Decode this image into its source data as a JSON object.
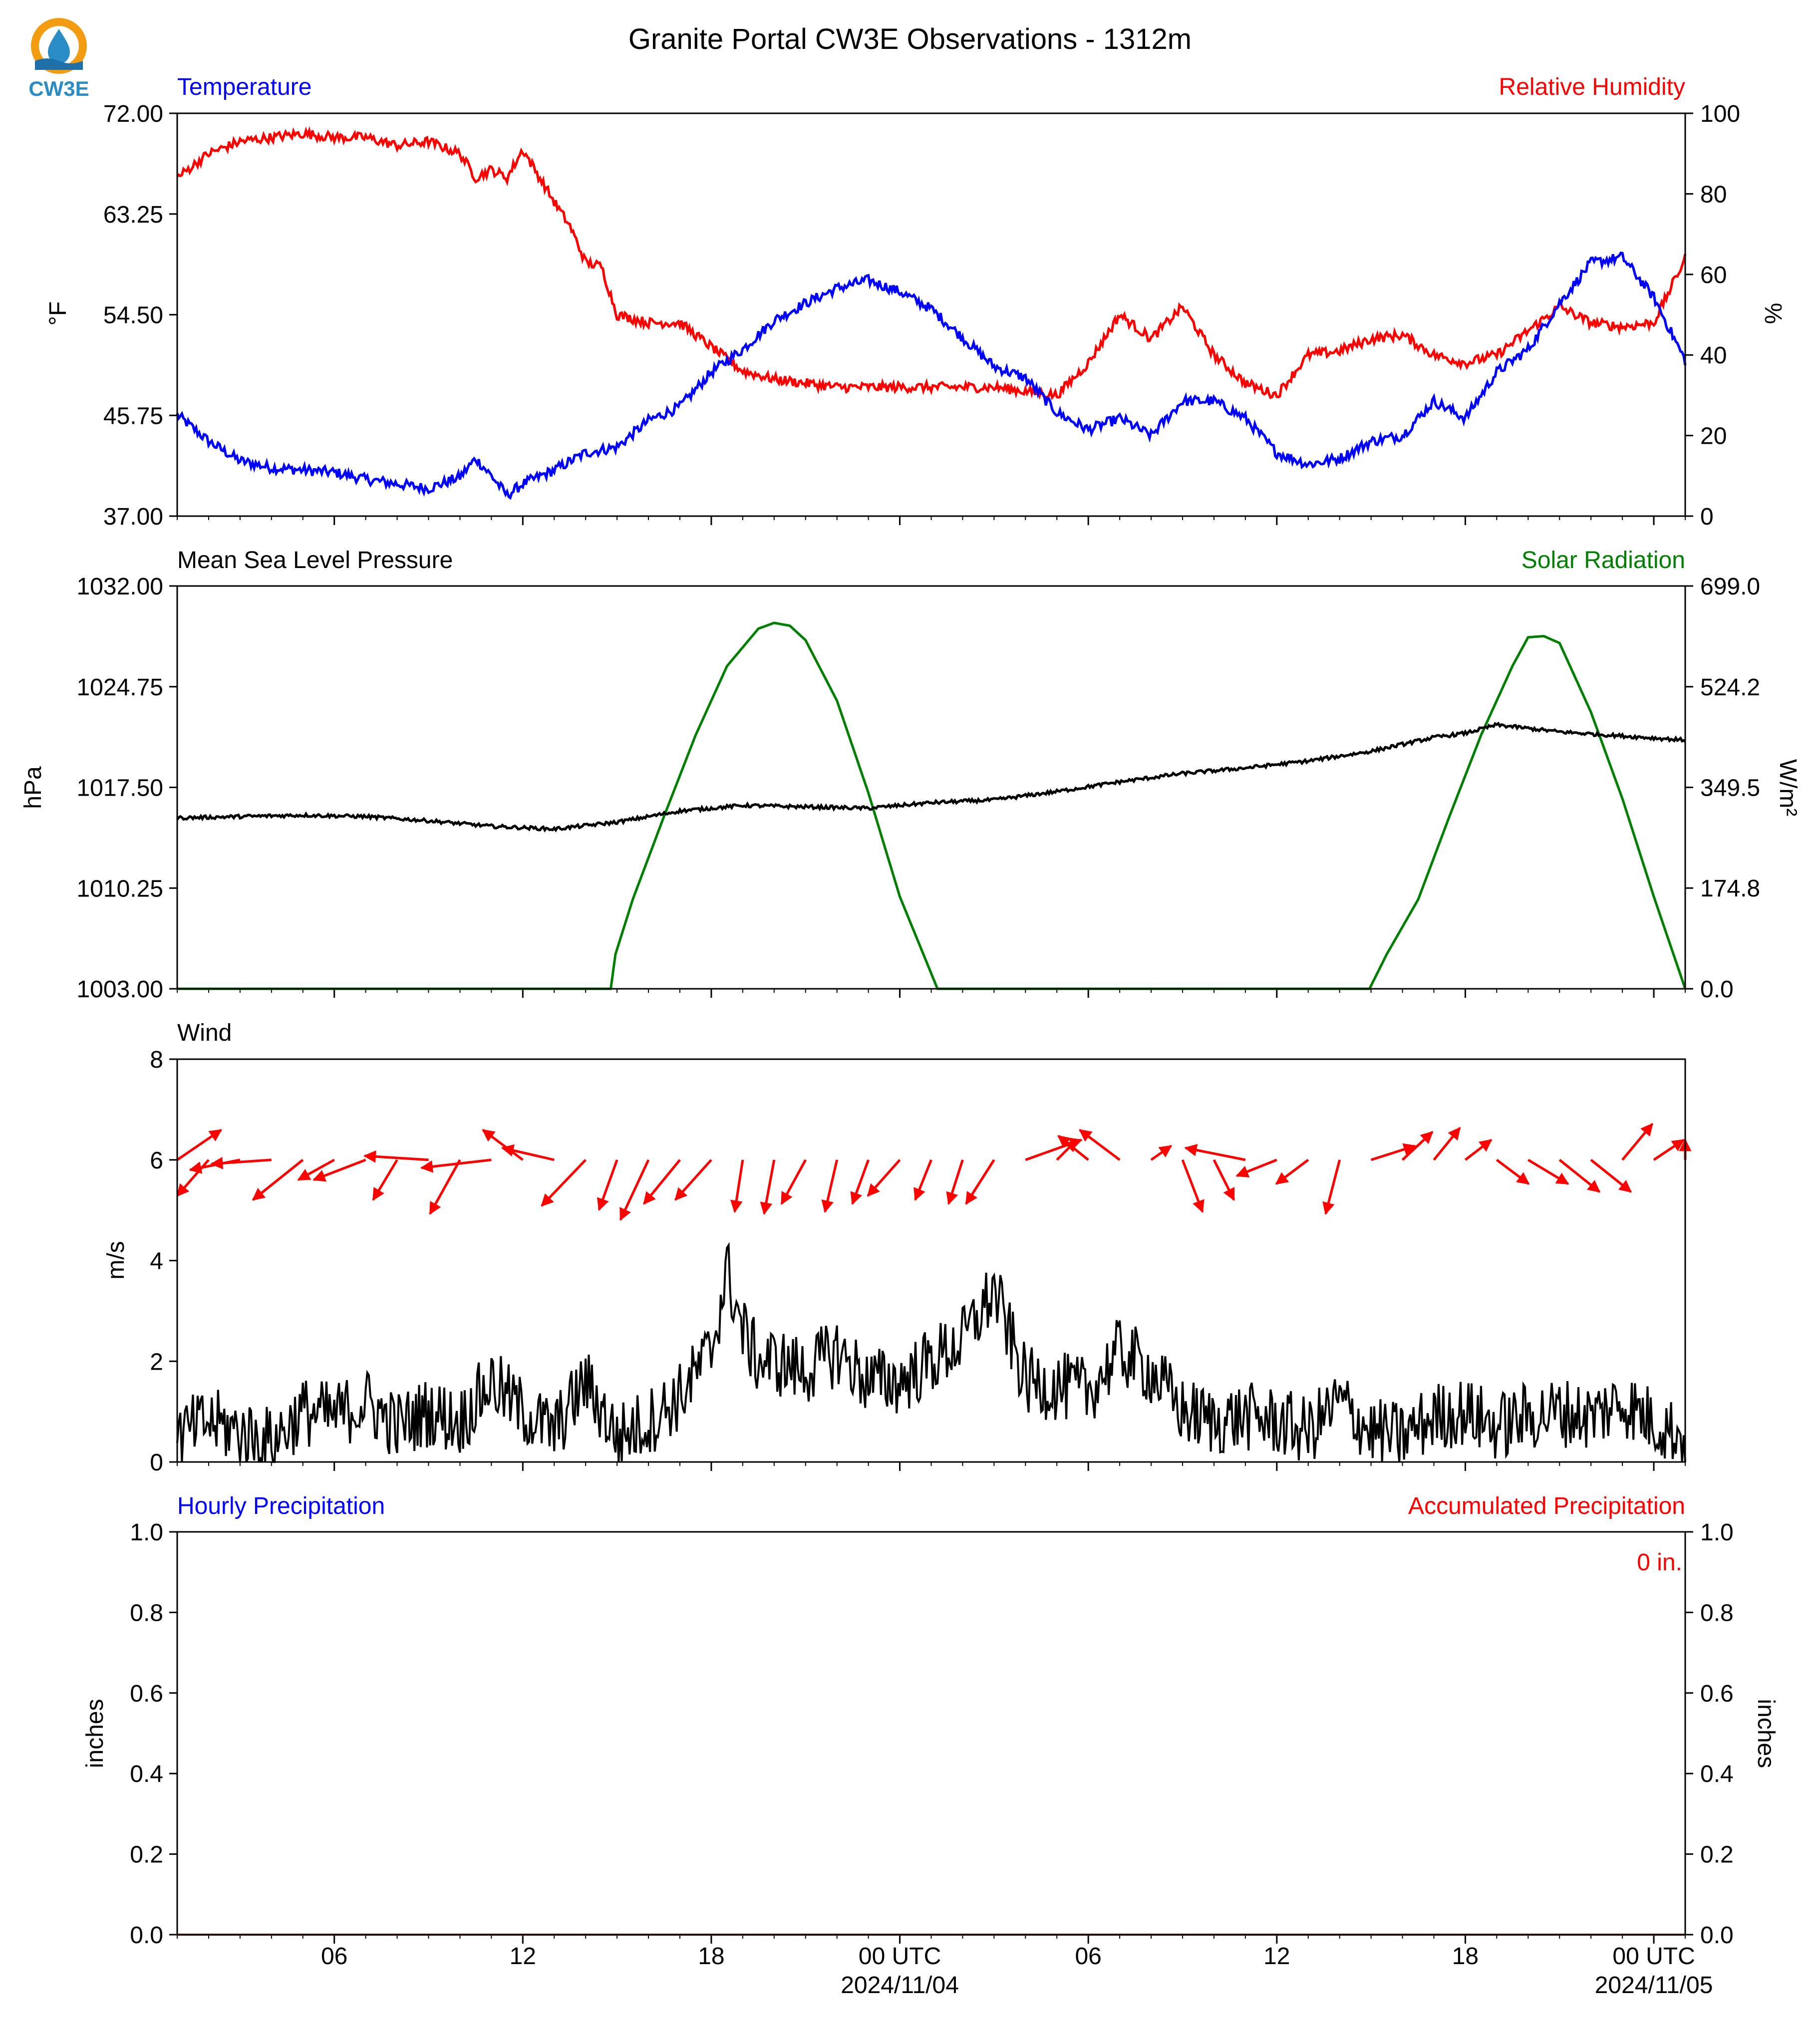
{
  "figure_title": "Granite Portal CW3E Observations - 1312m",
  "logo": {
    "text": "CW3E",
    "icon": "cw3e-water-drop-logo-icon",
    "ring_color": "#f39c12",
    "drop_color": "#2a8cc4",
    "wave_color": "#1f6fa8"
  },
  "colors": {
    "temperature": "#0000ff",
    "humidity": "#ff0000",
    "pressure": "#000000",
    "solar": "#008000",
    "wind_arrow": "#ff0000",
    "wind_speed": "#000000",
    "precip_hourly": "#0000ff",
    "precip_accum": "#ff0000"
  },
  "time_axis": {
    "start": "2024-11-03 01:00 UTC",
    "end": "2024-11-05 01:00 UTC",
    "major_ticks": [
      {
        "time": "2024-11-03 06:00",
        "label": "06",
        "date": ""
      },
      {
        "time": "2024-11-03 12:00",
        "label": "12",
        "date": ""
      },
      {
        "time": "2024-11-03 18:00",
        "label": "18",
        "date": ""
      },
      {
        "time": "2024-11-04 00:00",
        "label": "00 UTC",
        "date": "2024/11/04"
      },
      {
        "time": "2024-11-04 06:00",
        "label": "06",
        "date": ""
      },
      {
        "time": "2024-11-04 12:00",
        "label": "12",
        "date": ""
      },
      {
        "time": "2024-11-04 18:00",
        "label": "18",
        "date": ""
      },
      {
        "time": "2024-11-05 00:00",
        "label": "00 UTC",
        "date": "2024/11/05"
      }
    ]
  },
  "panels": {
    "temp_rh": {
      "left_title": "Temperature",
      "right_title": "Relative Humidity",
      "left_ylabel": "°F",
      "right_ylabel": "%",
      "left_ylim": [
        37.0,
        72.0
      ],
      "right_ylim": [
        0,
        100
      ],
      "left_ticks": [
        "37.00",
        "45.75",
        "54.50",
        "63.25",
        "72.00"
      ],
      "right_ticks": [
        "0",
        "20",
        "40",
        "60",
        "80",
        "100"
      ]
    },
    "pressure_solar": {
      "left_title": "Mean Sea Level Pressure",
      "right_title": "Solar Radiation",
      "left_ylabel": "hPa",
      "right_ylabel": "W/m²",
      "left_ylim": [
        1003.0,
        1032.0
      ],
      "right_ylim": [
        0.0,
        699.0
      ],
      "left_ticks": [
        "1003.00",
        "1010.25",
        "1017.50",
        "1024.75",
        "1032.00"
      ],
      "right_ticks": [
        "0.0",
        "174.8",
        "349.5",
        "524.2",
        "699.0"
      ]
    },
    "wind": {
      "left_title": "Wind",
      "left_ylabel": "m/s",
      "left_ylim": [
        0,
        8
      ],
      "left_ticks": [
        "0",
        "2",
        "4",
        "6",
        "8"
      ]
    },
    "precip": {
      "left_title": "Hourly Precipitation",
      "right_title": "Accumulated Precipitation",
      "left_ylabel": "inches",
      "right_ylabel": "inches",
      "left_ylim": [
        0.0,
        1.0
      ],
      "right_ylim": [
        0.0,
        1.0
      ],
      "left_ticks": [
        "0.0",
        "0.2",
        "0.4",
        "0.6",
        "0.8",
        "1.0"
      ],
      "right_ticks": [
        "0.0",
        "0.2",
        "0.4",
        "0.6",
        "0.8",
        "1.0"
      ],
      "accum_label": "0 in."
    }
  },
  "chart_data": [
    {
      "type": "line",
      "panel": "temp_rh",
      "x_unit": "hours since 2024-11-03 01:00 UTC",
      "series": [
        {
          "name": "Temperature",
          "axis": "left",
          "unit": "°F",
          "x": [
            0,
            1,
            2,
            3,
            4,
            5,
            6,
            7,
            8,
            9,
            9.5,
            10,
            10.5,
            11,
            12,
            13,
            14,
            15,
            16,
            17,
            18,
            19,
            20,
            21,
            22,
            23,
            24,
            25,
            26,
            27,
            28,
            29,
            30,
            31,
            32,
            33,
            34,
            35,
            36,
            37,
            38,
            39,
            40,
            41,
            42,
            43,
            44,
            45,
            46,
            47,
            48
          ],
          "y": [
            45.8,
            43.5,
            41.8,
            41.2,
            41.0,
            40.8,
            40.2,
            39.8,
            39.4,
            40.4,
            42.0,
            40.5,
            38.8,
            39.8,
            41.0,
            42.5,
            43.0,
            45.3,
            46.5,
            49.5,
            51.5,
            54.0,
            55.5,
            56.8,
            57.5,
            56.5,
            55.0,
            52.5,
            50.0,
            49.0,
            46.0,
            44.5,
            45.5,
            44.0,
            47.0,
            47.0,
            45.5,
            42.5,
            41.5,
            42.0,
            43.5,
            44.0,
            47.0,
            45.5,
            49.5,
            51.5,
            55.5,
            59.0,
            59.5,
            56.0,
            50.5
          ]
        },
        {
          "name": "Relative Humidity",
          "axis": "right",
          "unit": "%",
          "x": [
            0,
            1,
            2,
            3,
            4,
            5,
            6,
            7,
            8,
            9,
            9.5,
            10,
            10.5,
            11,
            12,
            12.5,
            13,
            13.5,
            14,
            15,
            16,
            17,
            18,
            19,
            20,
            21,
            22,
            23,
            24,
            25,
            26,
            27,
            28,
            29,
            30,
            31,
            32,
            33,
            34,
            35,
            36,
            37,
            38,
            39,
            40,
            41,
            42,
            43,
            44,
            45,
            46,
            47,
            48
          ],
          "y": [
            84,
            90,
            93,
            94,
            95,
            94,
            94,
            92,
            93,
            90,
            84,
            86,
            84,
            91,
            78,
            72,
            63,
            62,
            50,
            48,
            48,
            42,
            36,
            34,
            33,
            32,
            32,
            32,
            32,
            32,
            32,
            31,
            30,
            38,
            50,
            44,
            52,
            40,
            33,
            30,
            40,
            41,
            44,
            45,
            40,
            38,
            40,
            46,
            52,
            48,
            47,
            48,
            64
          ]
        }
      ]
    },
    {
      "type": "line",
      "panel": "pressure_solar",
      "x_unit": "hours since 2024-11-03 01:00 UTC",
      "series": [
        {
          "name": "Mean Sea Level Pressure",
          "axis": "left",
          "unit": "hPa",
          "x": [
            0,
            2,
            4,
            6,
            8,
            10,
            12,
            14,
            16,
            18,
            20,
            22,
            24,
            26,
            28,
            30,
            32,
            34,
            36,
            38,
            40,
            41,
            42,
            44,
            46,
            48
          ],
          "y": [
            1015.3,
            1015.4,
            1015.5,
            1015.4,
            1015.1,
            1014.7,
            1014.5,
            1015.0,
            1015.8,
            1016.2,
            1016.1,
            1016.0,
            1016.4,
            1016.6,
            1017.2,
            1017.9,
            1018.5,
            1018.9,
            1019.4,
            1020.1,
            1021.1,
            1021.4,
            1022.0,
            1021.5,
            1021.2,
            1020.9
          ]
        },
        {
          "name": "Solar Radiation",
          "axis": "right",
          "unit": "W/m²",
          "x": [
            0,
            13.8,
            13.95,
            14.5,
            15.5,
            16.5,
            17.5,
            18.5,
            19.0,
            19.5,
            20.0,
            21.0,
            22.0,
            23.0,
            24.2,
            24.5,
            37.8,
            37.95,
            38.5,
            39.5,
            40.5,
            41.5,
            42.5,
            43.0,
            43.5,
            44.0,
            45.0,
            46.0,
            47.0,
            48.0
          ],
          "y": [
            0,
            0,
            60,
            155,
            300,
            440,
            560,
            625,
            635,
            630,
            605,
            500,
            340,
            160,
            0,
            0,
            0,
            0,
            60,
            155,
            300,
            440,
            560,
            610,
            612,
            600,
            480,
            330,
            160,
            0
          ]
        }
      ]
    },
    {
      "type": "line",
      "panel": "wind",
      "x_unit": "hours since 2024-11-03 01:00 UTC",
      "series": [
        {
          "name": "Wind Speed",
          "unit": "m/s",
          "x": [
            0,
            1,
            2,
            3,
            4,
            5,
            6,
            7,
            8,
            9,
            10,
            11,
            12,
            13,
            14,
            15,
            16,
            17,
            17.5,
            18,
            18.5,
            19,
            20,
            21,
            22,
            23,
            24,
            25,
            26,
            27,
            28,
            29,
            30,
            31,
            32,
            33,
            34,
            35,
            36,
            37,
            38,
            39,
            40,
            41,
            42,
            43,
            44,
            45,
            46,
            47,
            48
          ],
          "y": [
            0.5,
            0.8,
            0.6,
            0.4,
            1.0,
            0.9,
            1.2,
            0.7,
            1.0,
            0.8,
            1.6,
            1.0,
            0.6,
            1.6,
            0.5,
            0.8,
            1.3,
            2.2,
            3.8,
            2.6,
            2.0,
            2.0,
            1.8,
            2.2,
            1.6,
            1.6,
            2.0,
            2.4,
            3.4,
            1.6,
            1.5,
            1.4,
            2.2,
            1.8,
            1.0,
            0.8,
            0.9,
            0.8,
            0.6,
            1.2,
            0.6,
            0.5,
            0.9,
            1.0,
            0.7,
            0.9,
            1.0,
            0.9,
            1.2,
            0.8,
            0.5
          ]
        },
        {
          "name": "Wind Direction",
          "x": [
            0,
            1,
            2,
            3,
            4,
            5,
            6,
            7,
            8,
            9,
            10,
            11,
            12,
            13,
            14,
            15,
            16,
            17,
            18,
            19,
            20,
            21,
            22,
            23,
            24,
            25,
            26,
            27,
            28,
            29,
            30,
            31,
            32,
            33,
            34,
            35,
            36,
            37,
            38,
            39,
            40,
            41,
            42,
            43,
            44,
            45,
            46,
            47,
            48
          ],
          "u": [
            2.2,
            -1.8,
            -2.5,
            -3.0,
            -2.5,
            -1.8,
            -2.6,
            -1.2,
            -3.2,
            -1.5,
            -3.5,
            -2.0,
            -2.6,
            -2.2,
            -0.9,
            -1.4,
            -1.8,
            -1.8,
            -0.4,
            -0.5,
            -1.2,
            -0.6,
            -0.8,
            -1.6,
            -0.8,
            -0.7,
            -1.4,
            2.8,
            1.0,
            -1.5,
            -2.0,
            1.0,
            1.0,
            1.0,
            -3.0,
            -2.0,
            -1.6,
            -0.7,
            2.2,
            1.5,
            1.3,
            1.3,
            1.6,
            2.0,
            2.0,
            2.0,
            1.5,
            1.5,
            1.5
          ],
          "v": [
            1.5,
            -1.8,
            -0.5,
            -0.2,
            -2.0,
            -1.0,
            -1.0,
            -2.0,
            0.2,
            -2.7,
            -0.4,
            1.5,
            0.6,
            -2.3,
            -2.5,
            -3.0,
            -2.2,
            -2.0,
            -2.6,
            -2.7,
            -2.2,
            -2.6,
            -2.2,
            -1.8,
            -2.0,
            -2.2,
            -2.2,
            1.0,
            1.0,
            1.2,
            1.5,
            0.7,
            -2.6,
            -2.0,
            0.6,
            -0.8,
            -1.2,
            -2.7,
            0.7,
            1.4,
            1.6,
            1.0,
            -1.2,
            -1.2,
            -1.6,
            -1.6,
            1.8,
            1.0,
            1.0
          ]
        }
      ]
    },
    {
      "type": "line",
      "panel": "precip",
      "x_unit": "hours since 2024-11-03 01:00 UTC",
      "series": [
        {
          "name": "Hourly Precipitation",
          "axis": "left",
          "unit": "inches",
          "x": [
            0,
            48
          ],
          "y": [
            0,
            0
          ]
        },
        {
          "name": "Accumulated Precipitation",
          "axis": "right",
          "unit": "inches",
          "x": [
            0,
            48
          ],
          "y": [
            0,
            0
          ]
        }
      ]
    }
  ]
}
